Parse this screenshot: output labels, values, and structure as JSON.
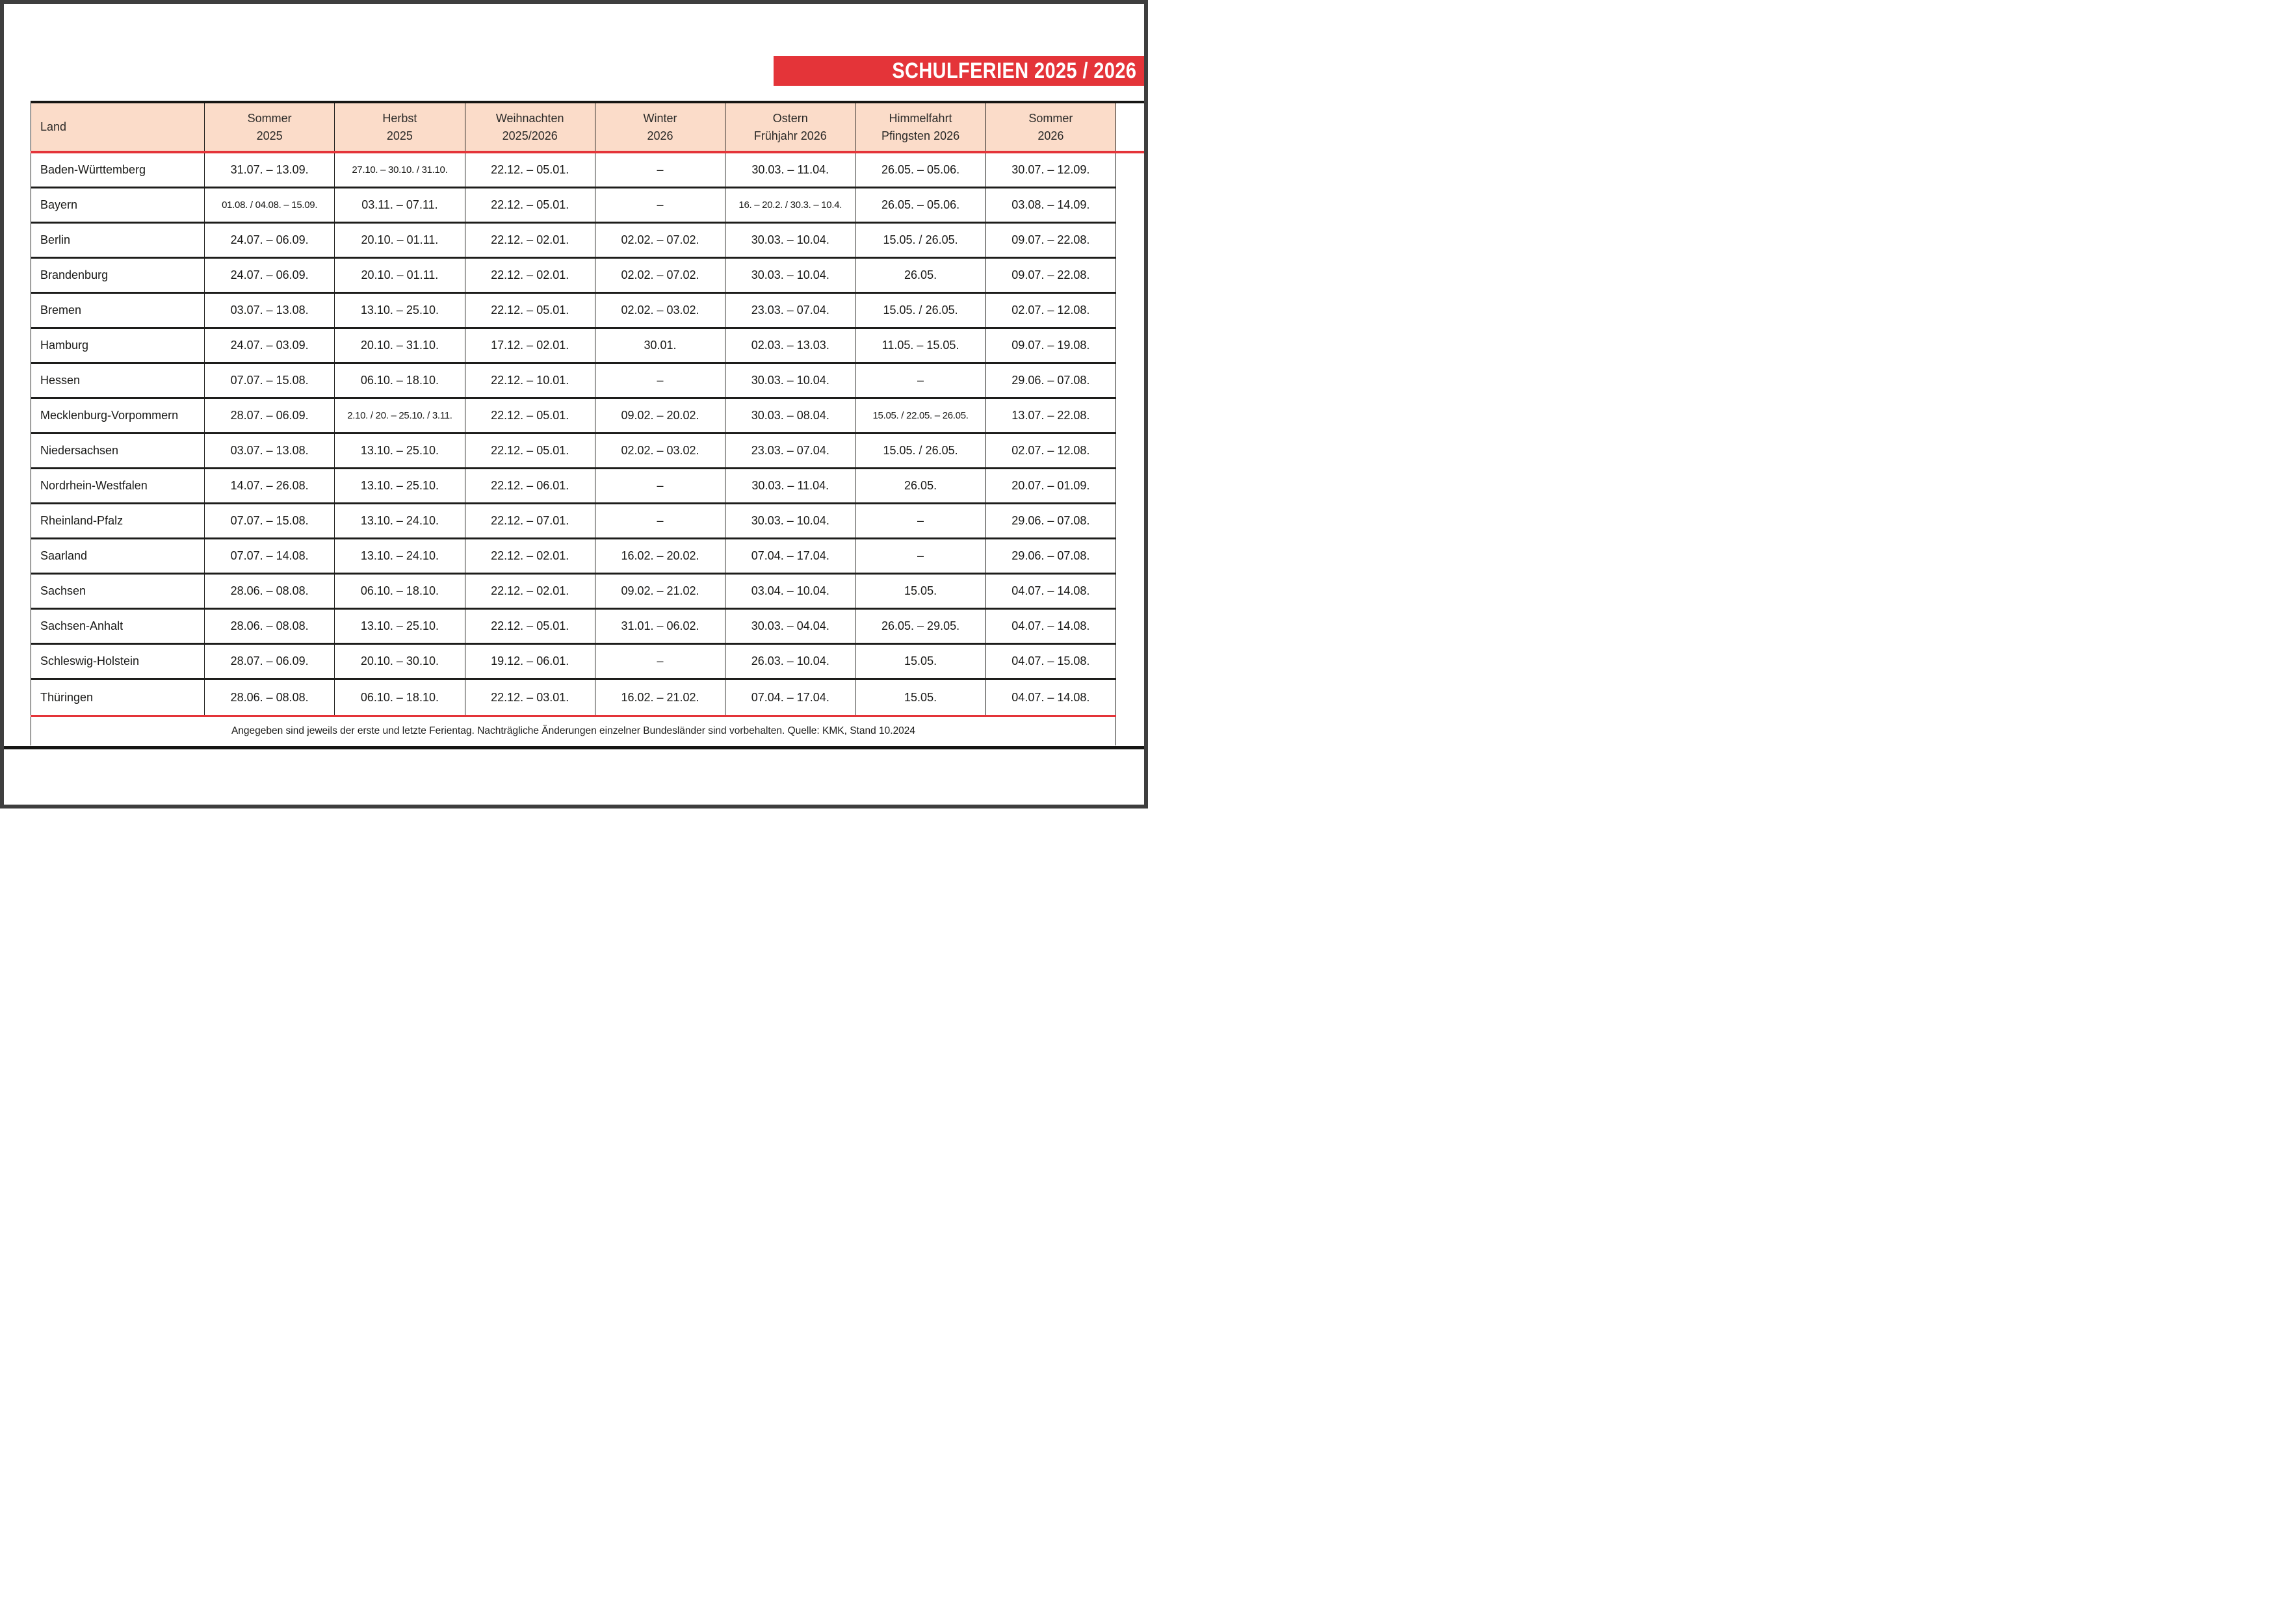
{
  "page": {
    "title": "SCHULFERIEN 2025 / 2026",
    "footnote": "Angegeben sind jeweils der erste und letzte Ferientag. Nachträgliche Änderungen einzelner Bundesländer sind vorbehalten. Quelle: KMK, Stand 10.2024"
  },
  "colors": {
    "accent_red": "#e43439",
    "header_bg": "#fbdcc9",
    "line_dark": "#1d1d1b",
    "frame": "#3e3e3e"
  },
  "table": {
    "columns": [
      {
        "line1": "Land",
        "line2": ""
      },
      {
        "line1": "Sommer",
        "line2": "2025"
      },
      {
        "line1": "Herbst",
        "line2": "2025"
      },
      {
        "line1": "Weihnachten",
        "line2": "2025/2026"
      },
      {
        "line1": "Winter",
        "line2": "2026"
      },
      {
        "line1": "Ostern",
        "line2": "Frühjahr 2026"
      },
      {
        "line1": "Himmelfahrt",
        "line2": "Pfingsten 2026"
      },
      {
        "line1": "Sommer",
        "line2": "2026"
      }
    ],
    "rows": [
      {
        "land": "Baden-Württemberg",
        "dates": [
          "31.07. – 13.09.",
          "27.10. – 30.10. / 31.10.",
          "22.12. – 05.01.",
          "–",
          "30.03. – 11.04.",
          "26.05. – 05.06.",
          "30.07. – 12.09."
        ]
      },
      {
        "land": "Bayern",
        "dates": [
          "01.08. / 04.08. – 15.09.",
          "03.11. – 07.11.",
          "22.12. – 05.01.",
          "–",
          "16. – 20.2. / 30.3. – 10.4.",
          "26.05. – 05.06.",
          "03.08. – 14.09."
        ]
      },
      {
        "land": "Berlin",
        "dates": [
          "24.07. – 06.09.",
          "20.10. – 01.11.",
          "22.12. – 02.01.",
          "02.02. – 07.02.",
          "30.03. – 10.04.",
          "15.05. / 26.05.",
          "09.07. – 22.08."
        ]
      },
      {
        "land": "Brandenburg",
        "dates": [
          "24.07. – 06.09.",
          "20.10. – 01.11.",
          "22.12. – 02.01.",
          "02.02. – 07.02.",
          "30.03. – 10.04.",
          "26.05.",
          "09.07. – 22.08."
        ]
      },
      {
        "land": "Bremen",
        "dates": [
          "03.07. – 13.08.",
          "13.10. – 25.10.",
          "22.12. – 05.01.",
          "02.02. – 03.02.",
          "23.03. – 07.04.",
          "15.05. / 26.05.",
          "02.07. – 12.08."
        ]
      },
      {
        "land": "Hamburg",
        "dates": [
          "24.07. – 03.09.",
          "20.10. – 31.10.",
          "17.12. – 02.01.",
          "30.01.",
          "02.03. – 13.03.",
          "11.05. – 15.05.",
          "09.07. – 19.08."
        ]
      },
      {
        "land": "Hessen",
        "dates": [
          "07.07. – 15.08.",
          "06.10. – 18.10.",
          "22.12. – 10.01.",
          "–",
          "30.03. – 10.04.",
          "–",
          "29.06. – 07.08."
        ]
      },
      {
        "land": "Mecklenburg-Vorpommern",
        "dates": [
          "28.07. – 06.09.",
          "2.10. / 20. – 25.10. / 3.11.",
          "22.12. – 05.01.",
          "09.02. – 20.02.",
          "30.03. – 08.04.",
          "15.05. / 22.05. – 26.05.",
          "13.07. – 22.08."
        ]
      },
      {
        "land": "Niedersachsen",
        "dates": [
          "03.07. – 13.08.",
          "13.10. – 25.10.",
          "22.12. – 05.01.",
          "02.02. – 03.02.",
          "23.03. – 07.04.",
          "15.05. / 26.05.",
          "02.07. – 12.08."
        ]
      },
      {
        "land": "Nordrhein-Westfalen",
        "dates": [
          "14.07. – 26.08.",
          "13.10. – 25.10.",
          "22.12. – 06.01.",
          "–",
          "30.03. – 11.04.",
          "26.05.",
          "20.07. – 01.09."
        ]
      },
      {
        "land": "Rheinland-Pfalz",
        "dates": [
          "07.07. – 15.08.",
          "13.10. – 24.10.",
          "22.12. – 07.01.",
          "–",
          "30.03. – 10.04.",
          "–",
          "29.06. – 07.08."
        ]
      },
      {
        "land": "Saarland",
        "dates": [
          "07.07. – 14.08.",
          "13.10. – 24.10.",
          "22.12. – 02.01.",
          "16.02. – 20.02.",
          "07.04. – 17.04.",
          "–",
          "29.06. – 07.08."
        ]
      },
      {
        "land": "Sachsen",
        "dates": [
          "28.06. – 08.08.",
          "06.10. – 18.10.",
          "22.12. – 02.01.",
          "09.02. – 21.02.",
          "03.04. – 10.04.",
          "15.05.",
          "04.07. – 14.08."
        ]
      },
      {
        "land": "Sachsen-Anhalt",
        "dates": [
          "28.06. – 08.08.",
          "13.10. – 25.10.",
          "22.12. – 05.01.",
          "31.01. – 06.02.",
          "30.03. – 04.04.",
          "26.05. – 29.05.",
          "04.07. – 14.08."
        ]
      },
      {
        "land": "Schleswig-Holstein",
        "dates": [
          "28.07. – 06.09.",
          "20.10. – 30.10.",
          "19.12. – 06.01.",
          "–",
          "26.03. – 10.04.",
          "15.05.",
          "04.07. – 15.08."
        ]
      },
      {
        "land": "Thüringen",
        "dates": [
          "28.06. – 08.08.",
          "06.10. – 18.10.",
          "22.12. – 03.01.",
          "16.02. – 21.02.",
          "07.04. – 17.04.",
          "15.05.",
          "04.07. – 14.08."
        ]
      }
    ]
  }
}
